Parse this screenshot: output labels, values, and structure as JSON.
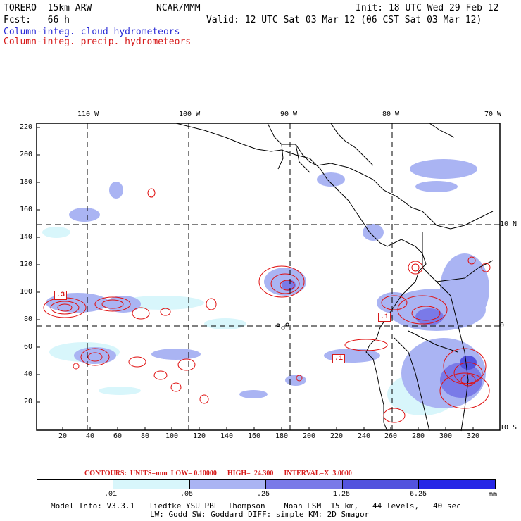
{
  "header": {
    "model": "TORERO  15km ARW",
    "org": "NCAR/MMM",
    "init": "Init: 18 UTC Wed 29 Feb 12",
    "fcst": "Fcst:   66 h",
    "valid": "Valid: 12 UTC Sat 03 Mar 12 (06 CST Sat 03 Mar 12)",
    "field1": "Column-integ. cloud hydrometeors",
    "field2": "Column-integ. precip. hydrometeors"
  },
  "axes": {
    "lon_labels": [
      "110 W",
      "100 W",
      "90 W",
      "80 W",
      "70 W"
    ],
    "lat_labels": [
      "10 N",
      "0",
      "10 S"
    ],
    "y_ticks": [
      "220",
      "200",
      "180",
      "160",
      "140",
      "120",
      "100",
      "80",
      "60",
      "40",
      "20"
    ],
    "x_ticks": [
      "20",
      "40",
      "60",
      "80",
      "100",
      "120",
      "140",
      "160",
      "180",
      "200",
      "220",
      "240",
      "260",
      "280",
      "300",
      "320"
    ]
  },
  "contour_info": "CONTOURS:  UNITS=mm  LOW= 0.10000      HIGH=  24.300      INTERVAL=X  3.0000",
  "colorbar": {
    "colors": [
      "#ffffff",
      "#d8f6fb",
      "#aab4f3",
      "#7a7ae8",
      "#5353de",
      "#2727e6"
    ],
    "ticks": [
      ".01",
      ".05",
      ".25",
      "1.25",
      "6.25"
    ],
    "units": "mm"
  },
  "footer": {
    "line1": "Model Info: V3.3.1   Tiedtke YSU PBL  Thompson    Noah LSM  15 km,   44 levels,   40 sec",
    "line2": "LW: Godd SW: Goddard DIFF: simple KM: 2D Smagor"
  },
  "contour_markers": [
    ".3",
    ".1",
    ".1"
  ]
}
